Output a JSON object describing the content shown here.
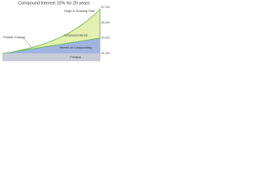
{
  "chart_data": {
    "type": "area",
    "stacked": true,
    "title": "Compound Interest 10% for 20 years",
    "x": [
      0,
      1,
      2,
      3,
      4,
      5,
      6,
      7,
      8,
      9,
      10,
      11,
      12,
      13,
      14,
      15,
      16,
      17,
      18,
      19,
      20
    ],
    "xlim": [
      0,
      20
    ],
    "series": [
      {
        "name": "Principal",
        "color": "#c9ccd6",
        "values": [
          1000,
          1000,
          1000,
          1000,
          1000,
          1000,
          1000,
          1000,
          1000,
          1000,
          1000,
          1000,
          1000,
          1000,
          1000,
          1000,
          1000,
          1000,
          1000,
          1000,
          1000
        ]
      },
      {
        "name": "Interest on Compounding",
        "color": "#9fb4e0",
        "values": [
          0,
          100,
          200,
          300,
          400,
          500,
          600,
          700,
          800,
          900,
          1000,
          1100,
          1200,
          1300,
          1400,
          1500,
          1600,
          1700,
          1800,
          1900,
          2000
        ]
      },
      {
        "name": "Compound interest",
        "color": "#e4efb0",
        "values": [
          0,
          0,
          10,
          31,
          64,
          111,
          172,
          249,
          344,
          458,
          594,
          753,
          938,
          1152,
          1397,
          1677,
          1995,
          2354,
          2760,
          3216,
          3728
        ]
      }
    ],
    "annotations": [
      "Huge & Growing Fast",
      "Pocket Change"
    ],
    "ylim": [
      0,
      7000
    ],
    "yticks": [
      {
        "value": 1000,
        "label": "$1,000"
      },
      {
        "value": 3000,
        "label": "$3,000"
      },
      {
        "value": 5000,
        "label": "$5,000"
      },
      {
        "value": 7000,
        "label": "$7,000"
      }
    ]
  }
}
